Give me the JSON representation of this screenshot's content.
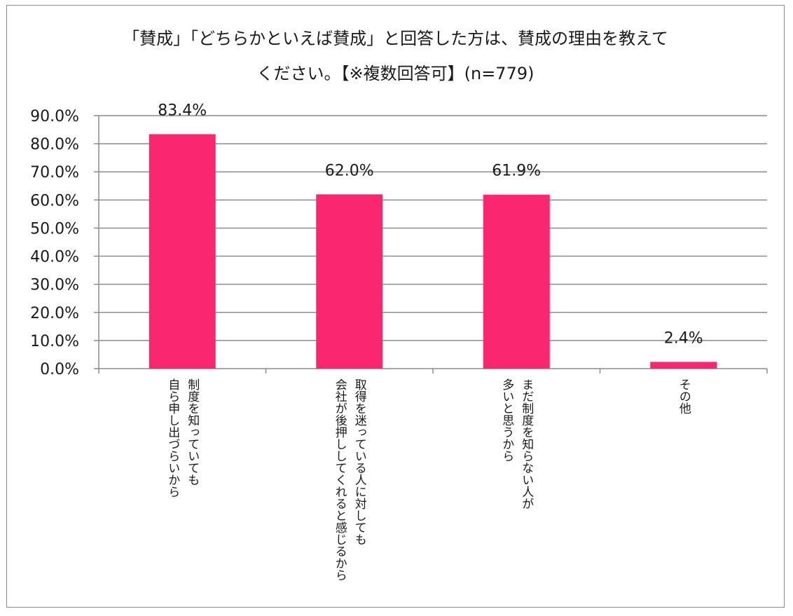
{
  "chart_data": {
    "type": "bar",
    "title_lines": [
      "「賛成」「どちらかといえば賛成」と回答した方は、賛成の理由を教えて",
      "ください。【※複数回答可】(n=779)"
    ],
    "categories": [
      [
        "自ら申し出づらいから",
        "制度を知っていても"
      ],
      [
        "会社が後押ししてくれると感じるから",
        "取得を迷っている人に対しても"
      ],
      [
        "多いと思うから",
        "まだ制度を知らない人が"
      ],
      [
        "その他"
      ]
    ],
    "values": [
      83.4,
      62.0,
      61.9,
      2.4
    ],
    "value_labels": [
      "83.4%",
      "62.0%",
      "61.9%",
      "2.4%"
    ],
    "y_ticks": [
      "0.0%",
      "10.0%",
      "20.0%",
      "30.0%",
      "40.0%",
      "50.0%",
      "60.0%",
      "70.0%",
      "80.0%",
      "90.0%"
    ],
    "ylim": [
      0,
      90
    ],
    "grid": true,
    "colors": {
      "bar": "#fb2670",
      "grid": "#8c8c8c",
      "axis": "#8c8c8c"
    }
  }
}
